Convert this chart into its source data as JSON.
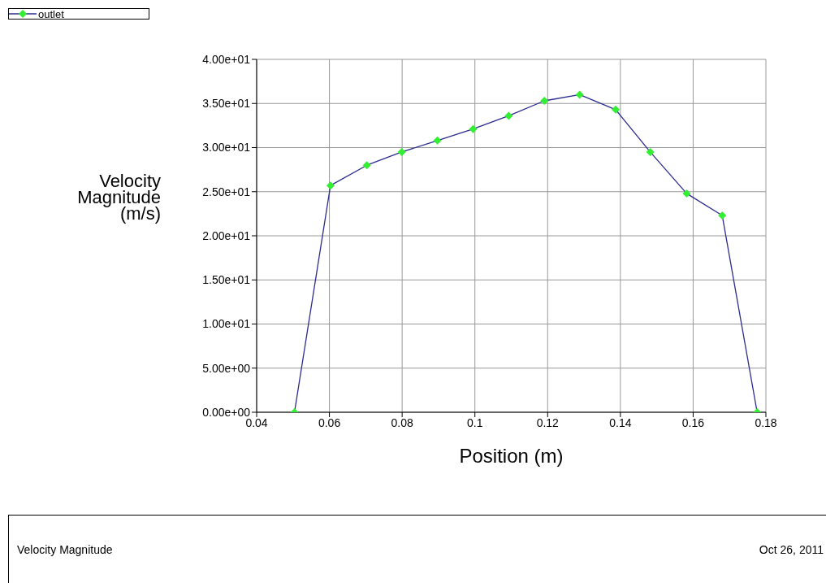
{
  "chart_data": {
    "type": "line",
    "xlabel": "Position (m)",
    "ylabel": "Velocity Magnitude (m/s)",
    "x": [
      0.0504,
      0.0603,
      0.0703,
      0.0799,
      0.0897,
      0.0995,
      0.1093,
      0.1191,
      0.1288,
      0.1387,
      0.1482,
      0.1582,
      0.168,
      0.1776
    ],
    "series": [
      {
        "name": "outlet",
        "color": "#2b2b8f",
        "colors": [
          "#33ee33",
          "#33ee33",
          "#33ee33",
          "#33ee33",
          "#33ee33",
          "#33ee33",
          "#33ee33",
          "#33ee33",
          "#33ee33",
          "#33ee33",
          "#33ee33",
          "#33ee33",
          "#33ee33",
          "#33ee33"
        ],
        "values": [
          0,
          25.7,
          28.0,
          29.5,
          30.8,
          32.1,
          33.6,
          35.3,
          36.0,
          34.3,
          29.5,
          24.8,
          22.3,
          0
        ]
      }
    ],
    "xlim": [
      0.04,
      0.18
    ],
    "xticks": [
      0.04,
      0.06,
      0.08,
      0.1,
      0.12,
      0.14,
      0.16,
      0.18
    ],
    "ylim": [
      0,
      40
    ],
    "yticks": [
      {
        "value": 0,
        "label": "0.00e+00"
      },
      {
        "value": 5,
        "label": "5.00e+00"
      },
      {
        "value": 10,
        "label": "1.00e+01"
      },
      {
        "value": 15,
        "label": "1.50e+01"
      },
      {
        "value": 20,
        "label": "2.00e+01"
      },
      {
        "value": 25,
        "label": "2.50e+01"
      },
      {
        "value": 30,
        "label": "3.00e+01"
      },
      {
        "value": 35,
        "label": "3.50e+01"
      },
      {
        "value": 40,
        "label": "4.00e+01"
      }
    ],
    "grid": true,
    "legend": "top left",
    "marker": "diamond",
    "line_style": "solid",
    "annotations": [
      "Velocity Magnitude",
      "Oct 26, 2011"
    ]
  }
}
